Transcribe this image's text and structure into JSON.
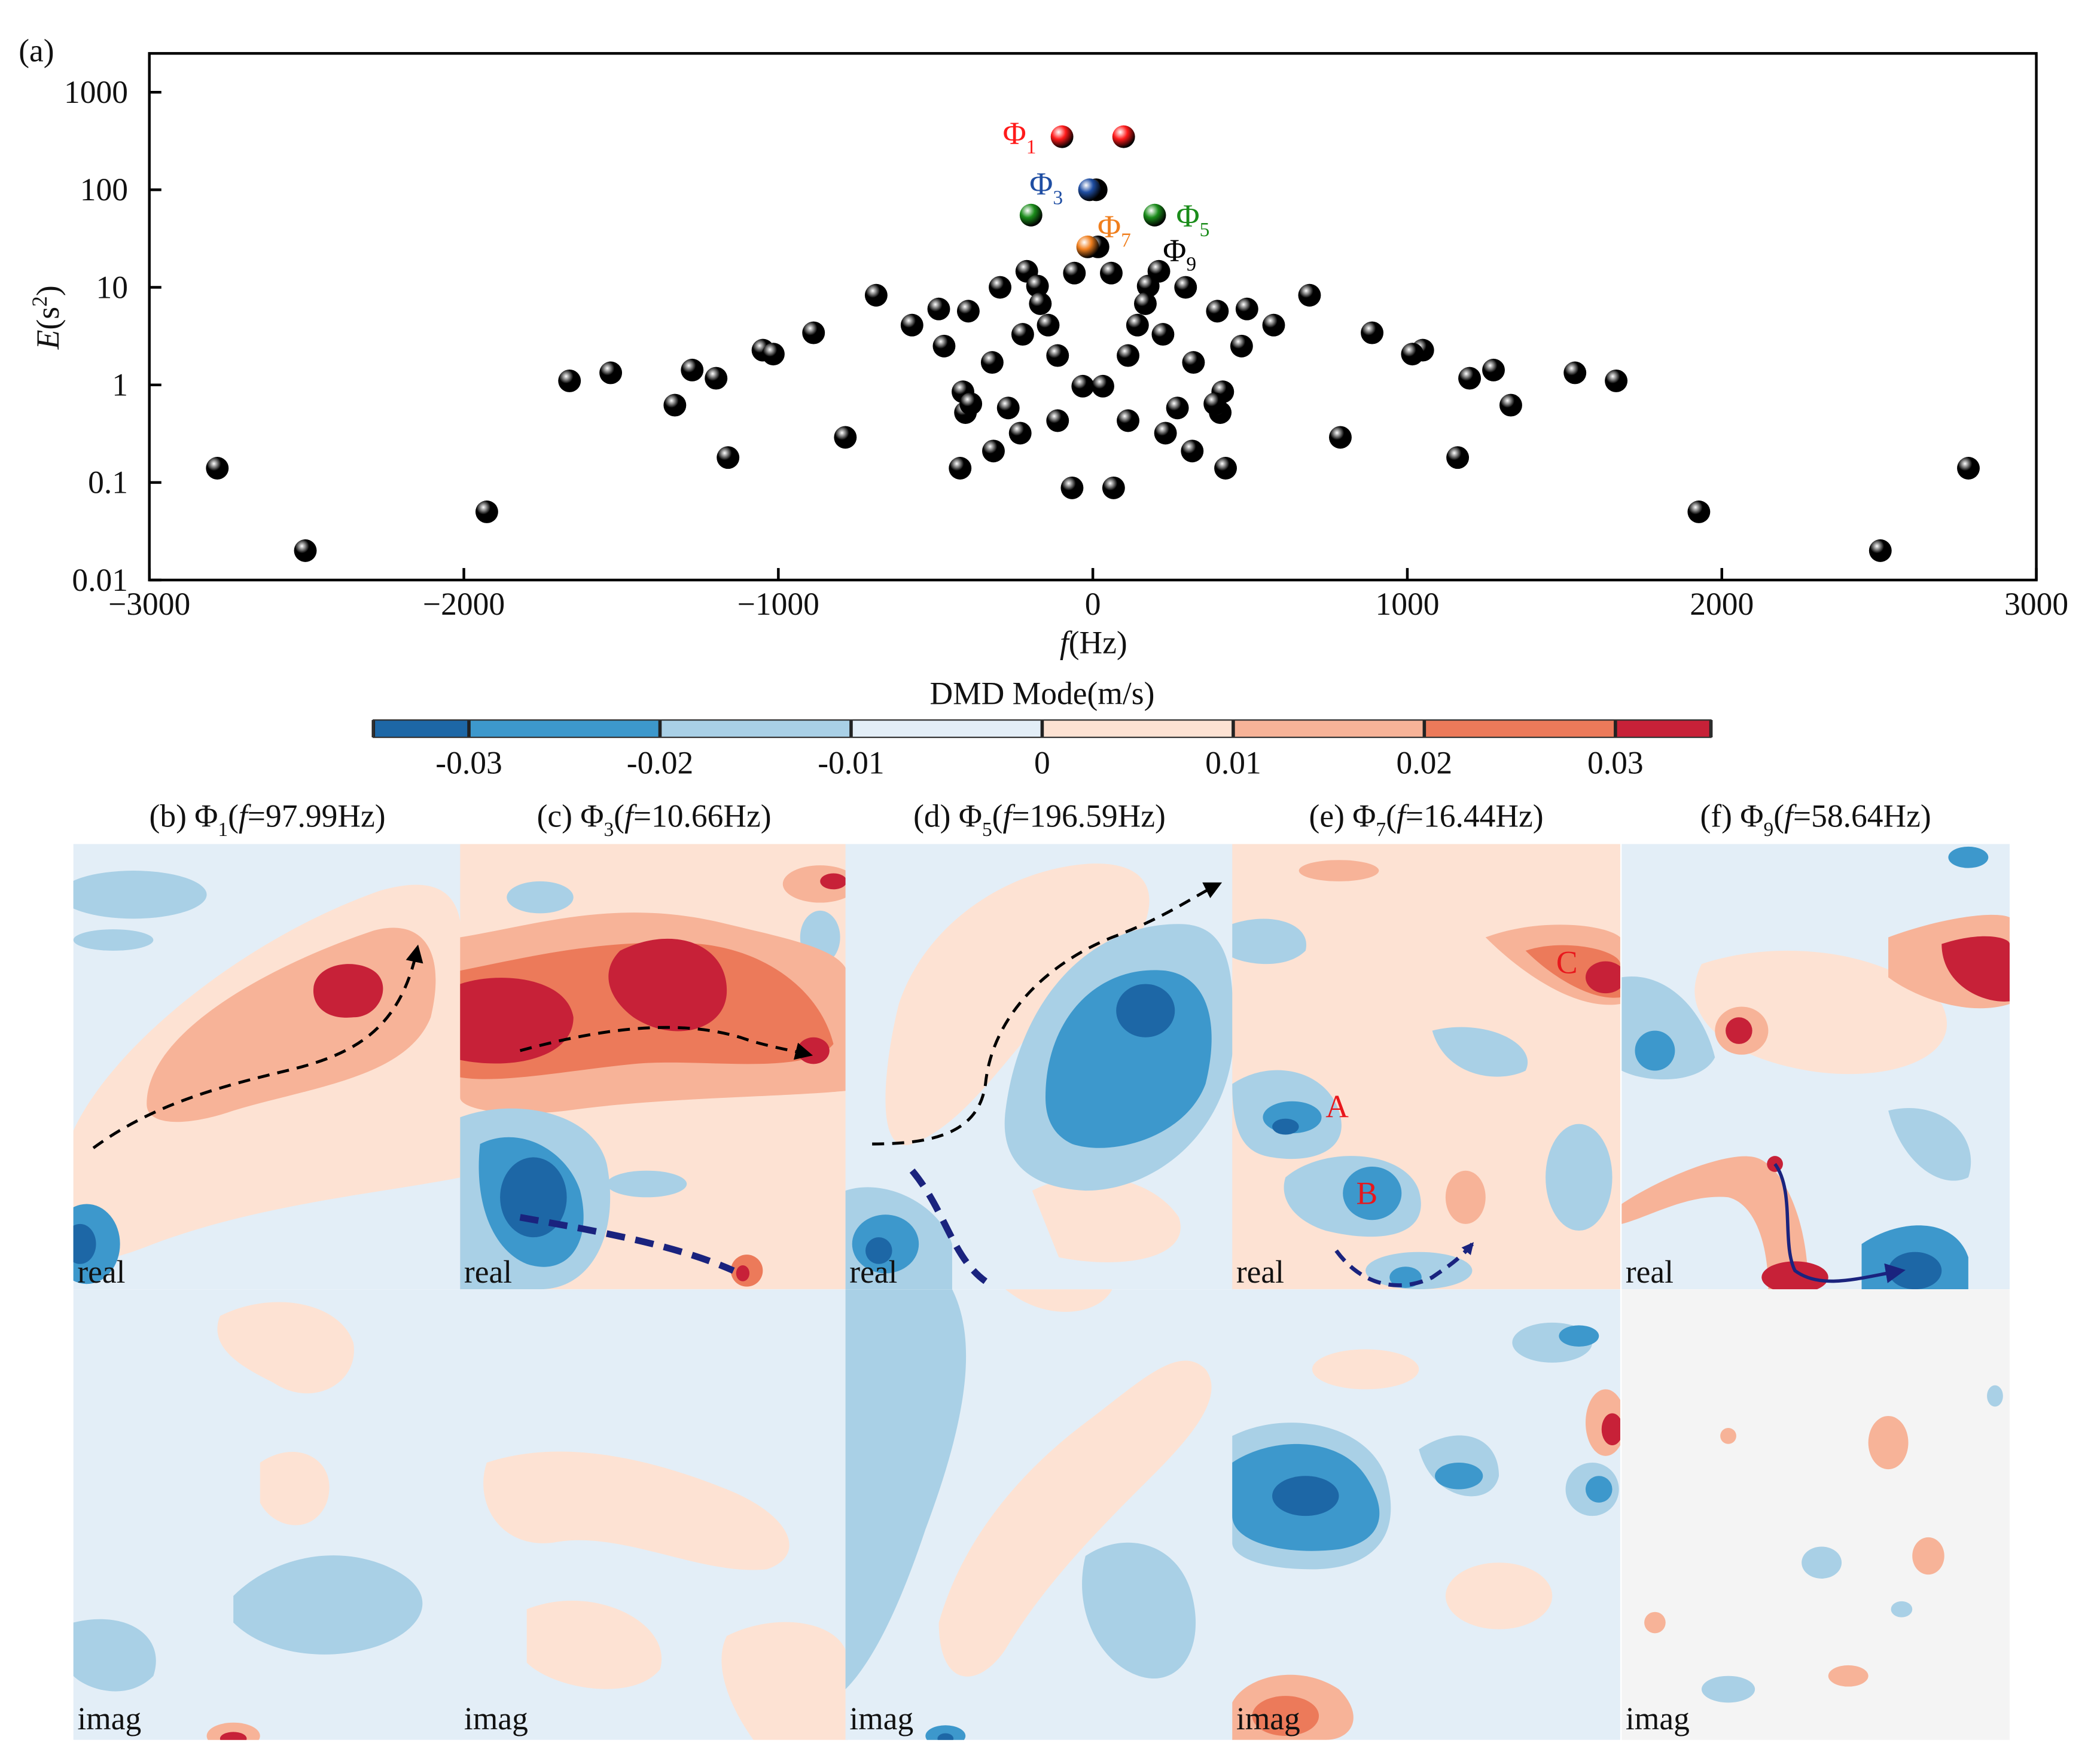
{
  "chart_data": {
    "type": "scatter",
    "label": "(a)",
    "xlabel": [
      "f",
      "(Hz)"
    ],
    "ylabel": [
      "E",
      "(s",
      "2",
      ")"
    ],
    "xlim": [
      -3000,
      3000
    ],
    "ylim": [
      0.01,
      2500
    ],
    "log_y": true,
    "xticks": [
      {
        "value": -3000,
        "label": "−3000"
      },
      {
        "value": -2000,
        "label": "−2000"
      },
      {
        "value": -1000,
        "label": "−1000"
      },
      0,
      1000,
      2000,
      3000
    ],
    "yticks": [
      0.01,
      0.1,
      1,
      10,
      100,
      1000
    ],
    "series": [
      {
        "color": "#000000",
        "x": [
          -2784,
          -2504,
          -1927,
          -1664,
          -1533,
          -1329,
          -1274,
          -1198,
          -1160,
          -1049,
          -1016,
          -888,
          -787,
          -689,
          -575,
          -490,
          -473,
          -396,
          -413,
          -405,
          -422,
          -388,
          -320,
          -316,
          -295,
          -269,
          -231,
          -223,
          -210,
          -176,
          -167,
          -142,
          -112,
          -112,
          -58.64,
          -32,
          -66,
          2784,
          2504,
          1927,
          1664,
          1533,
          1329,
          1274,
          1198,
          1160,
          1049,
          1016,
          888,
          787,
          689,
          575,
          490,
          473,
          396,
          413,
          405,
          422,
          388,
          320,
          316,
          295,
          269,
          231,
          223,
          210,
          176,
          167,
          142,
          112,
          112,
          58.64,
          32,
          66,
          10.66,
          16.44
        ],
        "values": [
          0.14,
          0.02,
          0.05,
          1.1,
          1.33,
          0.62,
          1.42,
          1.17,
          0.18,
          2.27,
          2.07,
          3.42,
          0.29,
          8.3,
          4.1,
          6.0,
          2.5,
          5.7,
          0.85,
          0.52,
          0.14,
          0.64,
          1.7,
          0.21,
          10,
          0.58,
          0.32,
          3.3,
          14.6,
          10.3,
          6.8,
          4.1,
          2.0,
          0.43,
          14,
          0.97,
          0.088,
          0.14,
          0.02,
          0.05,
          1.1,
          1.33,
          0.62,
          1.42,
          1.17,
          0.18,
          2.27,
          2.07,
          3.42,
          0.29,
          8.3,
          4.1,
          6.0,
          2.5,
          5.7,
          0.85,
          0.52,
          0.14,
          0.64,
          1.7,
          0.21,
          10,
          0.58,
          0.32,
          3.3,
          14.6,
          10.3,
          6.8,
          4.1,
          2.0,
          0.43,
          14,
          0.97,
          0.088,
          100,
          26
        ]
      },
      {
        "color": "#ff1a1a",
        "x": [
          -97.99,
          97.99
        ],
        "values": [
          350,
          350
        ]
      },
      {
        "color": "#1f4ea3",
        "x": [
          -10.66
        ],
        "values": [
          100
        ]
      },
      {
        "color": "#1a8c1a",
        "x": [
          -196.59,
          196.59
        ],
        "values": [
          55,
          55
        ]
      },
      {
        "color": "#f07f1e",
        "x": [
          -16.44
        ],
        "values": [
          26
        ]
      }
    ],
    "annotations": [
      {
        "text": "Φ",
        "sub": "1",
        "color": "#ff1a1a"
      },
      {
        "text": "Φ",
        "sub": "3",
        "color": "#1f4ea3"
      },
      {
        "text": "Φ",
        "sub": "5",
        "color": "#1a8c1a"
      },
      {
        "text": "Φ",
        "sub": "7",
        "color": "#f07f1e"
      },
      {
        "text": "Φ",
        "sub": "9",
        "color": "#000000"
      }
    ]
  },
  "colorbar": {
    "title": "DMD Mode(m/s)",
    "clim": [
      -0.035,
      0.035
    ],
    "boundaries": [
      -0.035,
      -0.03,
      -0.02,
      -0.01,
      0,
      0.01,
      0.02,
      0.03,
      0.035
    ],
    "colors": [
      "#1d67a6",
      "#3d98cc",
      "#a9d0e6",
      "#e3eef7",
      "#fde2d3",
      "#f7b398",
      "#ec7a5a",
      "#c72138"
    ],
    "ticks": [
      -0.03,
      -0.02,
      -0.01,
      0,
      0.01,
      0.02,
      0.03
    ]
  },
  "panels": [
    {
      "title": [
        "(b) Φ",
        "1",
        "(",
        "f",
        "=97.99Hz)"
      ],
      "real": "real",
      "imag": "imag"
    },
    {
      "title": [
        "(c) Φ",
        "3",
        "(",
        "f",
        "=10.66Hz)"
      ],
      "real": "real",
      "imag": "imag"
    },
    {
      "title": [
        "(d) Φ",
        "5",
        "(",
        "f",
        "=196.59Hz)"
      ],
      "real": "real",
      "imag": "imag"
    },
    {
      "title": [
        "(e) Φ",
        "7",
        "(",
        "f",
        "=16.44Hz)"
      ],
      "real": "real",
      "imag": "imag",
      "annotations": [
        "A",
        "B",
        "C"
      ]
    },
    {
      "title": [
        "(f) Φ",
        "9",
        "(",
        "f",
        "=58.64Hz)"
      ],
      "real": "real",
      "imag": "imag"
    }
  ]
}
